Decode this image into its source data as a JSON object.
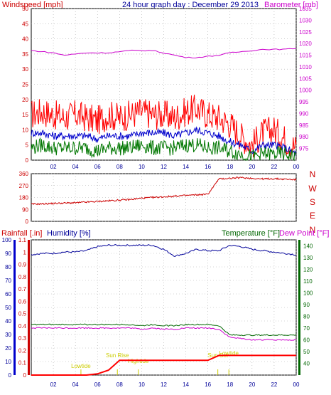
{
  "title": "24 hour graph day : December 29 2013",
  "colors": {
    "wind": "#ff0000",
    "wind_avg": "#0000cc",
    "gust_low": "#007700",
    "barometer": "#cc00cc",
    "direction": "#cc0000",
    "humidity": "#000099",
    "temperature": "#006600",
    "dew_point": "#cc00cc",
    "rain": "#ff0000",
    "event": "#cccc00"
  },
  "chart_data": [
    {
      "type": "line",
      "panel": "wind-barometer",
      "title": "24 hour graph day : December 29 2013",
      "ylabel_left": "Windspeed [mph]",
      "ylabel_right": "Barometer [mb]",
      "x_ticks": [
        "02",
        "04",
        "06",
        "08",
        "10",
        "12",
        "14",
        "16",
        "18",
        "20",
        "22",
        "00"
      ],
      "x": [
        0,
        1,
        2,
        3,
        4,
        5,
        6,
        7,
        8,
        9,
        10,
        11,
        12,
        13,
        14,
        15,
        16,
        17,
        18,
        19,
        20,
        21,
        22,
        23,
        24
      ],
      "ylim_left": [
        0,
        50
      ],
      "y_ticks_left": [
        "0",
        "5",
        "10",
        "15",
        "20",
        "25",
        "30",
        "35",
        "40",
        "45",
        "50"
      ],
      "ylim_right": [
        970,
        1035
      ],
      "y_ticks_right": [
        "975",
        "980",
        "985",
        "990",
        "995",
        "1000",
        "1005",
        "1010",
        "1015",
        "1020",
        "1025",
        "1030",
        "1035"
      ],
      "grid": true,
      "series": [
        {
          "name": "Windspeed",
          "axis": "left",
          "color_key": "wind",
          "values": [
            15,
            16,
            15,
            14,
            15,
            14,
            13,
            15,
            14,
            15,
            16,
            15,
            15,
            14,
            16,
            17,
            15,
            14,
            12,
            8,
            5,
            9,
            10,
            7,
            4
          ]
        },
        {
          "name": "Average",
          "axis": "left",
          "color_key": "wind_avg",
          "values": [
            9,
            9,
            8,
            8,
            8,
            8,
            7,
            8,
            8,
            8,
            9,
            9,
            9,
            8,
            9,
            10,
            9,
            8,
            6,
            5,
            3,
            5,
            5,
            4,
            2
          ]
        },
        {
          "name": "Low",
          "axis": "left",
          "color_key": "gust_low",
          "values": [
            4,
            5,
            4,
            4,
            4,
            4,
            3,
            4,
            4,
            4,
            5,
            4,
            4,
            4,
            5,
            5,
            4,
            4,
            3,
            2,
            1,
            2,
            2,
            2,
            1
          ]
        },
        {
          "name": "Barometer",
          "axis": "right",
          "color_key": "barometer",
          "values": [
            1017,
            1016.5,
            1016,
            1015,
            1015.5,
            1016,
            1016,
            1016,
            1016.5,
            1017,
            1017,
            1017,
            1016,
            1015,
            1014,
            1014,
            1014.5,
            1015,
            1016,
            1016.5,
            1017,
            1017.5,
            1017.5,
            1017.5,
            1018
          ]
        }
      ]
    },
    {
      "type": "line",
      "panel": "wind-direction",
      "x_ticks": [],
      "x": [
        0,
        1,
        2,
        3,
        4,
        5,
        6,
        7,
        8,
        9,
        10,
        11,
        12,
        13,
        14,
        15,
        16,
        17,
        18,
        19,
        20,
        21,
        22,
        23,
        24
      ],
      "ylim": [
        0,
        360
      ],
      "y_ticks_left": [
        "0",
        "90",
        "180",
        "270",
        "360"
      ],
      "y_ticks_right": [
        "N",
        "W",
        "S",
        "E",
        "N"
      ],
      "grid": true,
      "series": [
        {
          "name": "Direction",
          "color_key": "direction",
          "values": [
            130,
            132,
            135,
            138,
            140,
            145,
            150,
            155,
            160,
            165,
            175,
            180,
            185,
            190,
            195,
            200,
            205,
            320,
            325,
            330,
            325,
            320,
            322,
            318,
            315
          ]
        }
      ]
    },
    {
      "type": "line",
      "panel": "rain-humidity-temperature",
      "ylabel_left_1": "Rainfall [.in]",
      "ylabel_left_2": "Humidity [%]",
      "ylabel_right_1": "Temperature [°F]",
      "ylabel_right_2": "Dew Point [°F]",
      "x_ticks": [
        "02",
        "04",
        "06",
        "08",
        "10",
        "12",
        "14",
        "16",
        "18",
        "20",
        "22",
        "00"
      ],
      "x": [
        0,
        1,
        2,
        3,
        4,
        5,
        6,
        7,
        8,
        9,
        10,
        11,
        12,
        13,
        14,
        15,
        16,
        17,
        18,
        19,
        20,
        21,
        22,
        23,
        24
      ],
      "rain_ylim": [
        0,
        1.1
      ],
      "rain_ticks": [
        "0",
        "0.1",
        "0.2",
        "0.3",
        "0.4",
        "0.5",
        "0.6",
        "0.7",
        "0.8",
        "0.9",
        "1",
        "1.1"
      ],
      "humidity_ylim": [
        0,
        100
      ],
      "humidity_ticks": [
        "0",
        "10",
        "20",
        "30",
        "40",
        "50",
        "60",
        "70",
        "80",
        "90",
        "100"
      ],
      "temp_ylim": [
        30,
        145
      ],
      "temp_ticks": [
        "40",
        "50",
        "60",
        "70",
        "80",
        "90",
        "100",
        "110",
        "120",
        "130",
        "140"
      ],
      "grid": true,
      "series": [
        {
          "name": "Humidity",
          "axis": "humidity",
          "color_key": "humidity",
          "values": [
            89,
            90,
            90,
            91,
            91,
            92,
            95,
            96,
            96,
            96,
            96,
            96,
            93,
            88,
            90,
            93,
            92,
            92,
            96,
            95,
            93,
            92,
            91,
            90,
            89
          ]
        },
        {
          "name": "Temperature",
          "axis": "temp",
          "color_key": "temperature",
          "values": [
            73,
            73,
            73,
            73,
            73,
            73,
            73,
            73,
            73,
            73,
            72,
            73,
            72,
            72,
            73,
            73,
            73,
            72,
            64,
            64,
            64,
            64,
            64,
            64,
            64
          ]
        },
        {
          "name": "Dew Point",
          "axis": "temp",
          "color_key": "dew_point",
          "values": [
            70,
            70,
            70,
            70,
            70,
            70,
            70,
            70,
            70,
            70,
            69,
            70,
            69,
            69,
            70,
            70,
            70,
            69,
            62,
            61,
            60,
            60,
            60,
            60,
            60
          ]
        },
        {
          "name": "Rainfall",
          "axis": "rain",
          "color_key": "rain",
          "values": [
            0,
            0,
            0,
            0,
            0,
            0,
            0.01,
            0.04,
            0.12,
            0.12,
            0.12,
            0.12,
            0.12,
            0.12,
            0.12,
            0.12,
            0.12,
            0.16,
            0.16,
            0.16,
            0.16,
            0.16,
            0.16,
            0.16,
            0.16
          ]
        }
      ],
      "annotations": [
        {
          "text": "Lowtide",
          "x": 4.5
        },
        {
          "text": "Sun Rise",
          "x": 7.8
        },
        {
          "text": "Hightide",
          "x": 9.7
        },
        {
          "text": "Sun Set",
          "x": 16.9
        },
        {
          "text": "Lowtide",
          "x": 17.9
        }
      ]
    }
  ]
}
